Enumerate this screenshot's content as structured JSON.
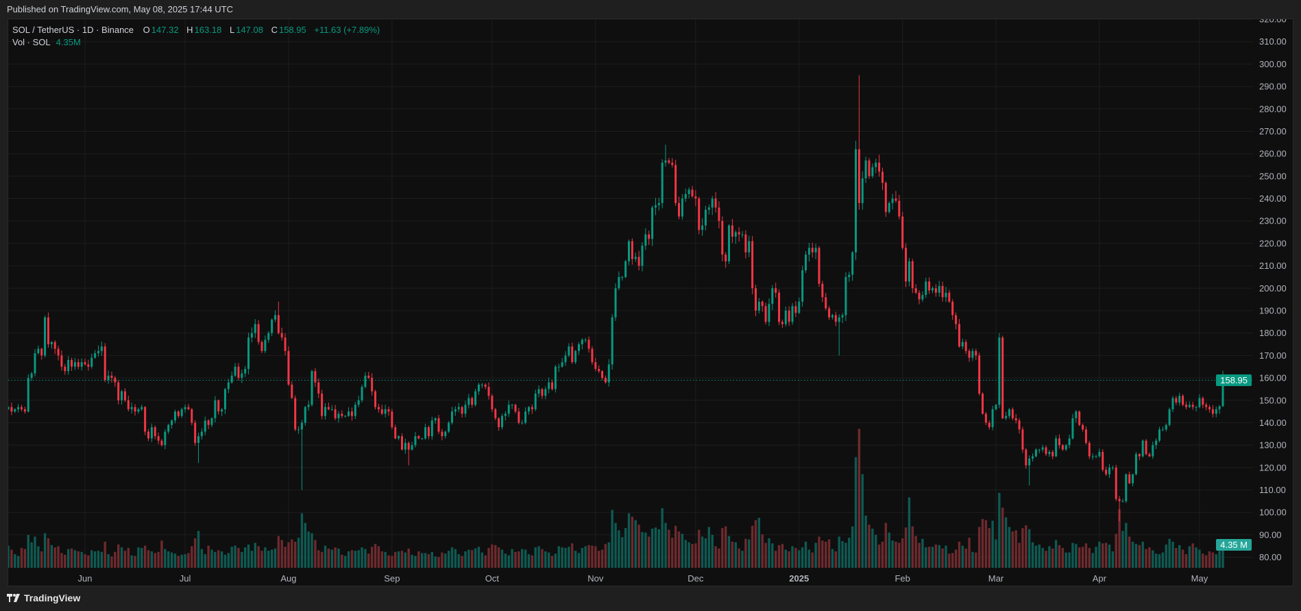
{
  "header": {
    "published": "Published on TradingView.com, May 08, 2025 17:44 UTC"
  },
  "legend": {
    "symbol": "SOL / TetherUS · 1D · Binance",
    "o_label": "O",
    "o": "147.32",
    "h_label": "H",
    "h": "163.18",
    "l_label": "L",
    "l": "147.08",
    "c_label": "C",
    "c": "158.95",
    "change": "+11.63 (+7.89%)",
    "vol_label": "Vol · SOL",
    "vol": "4.35M"
  },
  "badges": {
    "last_price": "158.95",
    "last_volume": "4.35 M"
  },
  "footer": {
    "brand": "TradingView",
    "logo_icon": "tradingview-logo-icon"
  },
  "colors": {
    "up": "#089981",
    "down": "#f23645",
    "vol_up": "#0e5a52",
    "vol_down": "#6e2a2e",
    "price_line": "#089981",
    "volume_badge": "#26a69a"
  },
  "chart_data": {
    "type": "candlestick",
    "x_range": [
      "2024-05-09",
      "2025-05-08"
    ],
    "ylim": [
      80,
      320
    ],
    "y_ticks": [
      80,
      90,
      100,
      110,
      120,
      130,
      140,
      150,
      160,
      170,
      180,
      190,
      200,
      210,
      220,
      230,
      240,
      250,
      260,
      270,
      280,
      290,
      300,
      310,
      320
    ],
    "x_ticks": [
      {
        "label": "Jun",
        "date": "2024-06-01"
      },
      {
        "label": "Jul",
        "date": "2024-07-01"
      },
      {
        "label": "Aug",
        "date": "2024-08-01"
      },
      {
        "label": "Sep",
        "date": "2024-09-01"
      },
      {
        "label": "Oct",
        "date": "2024-10-01"
      },
      {
        "label": "Nov",
        "date": "2024-11-01"
      },
      {
        "label": "Dec",
        "date": "2024-12-01"
      },
      {
        "label": "2025",
        "date": "2025-01-01",
        "bold": true
      },
      {
        "label": "Feb",
        "date": "2025-02-01"
      },
      {
        "label": "Mar",
        "date": "2025-03-01"
      },
      {
        "label": "Apr",
        "date": "2025-04-01"
      },
      {
        "label": "May",
        "date": "2025-05-01"
      }
    ],
    "grid": true,
    "last_price": 158.95,
    "volume_unit": "M",
    "months": [
      {
        "month": "2024-05",
        "open": 146,
        "close": [
          147,
          145,
          146,
          147,
          146,
          145,
          160,
          162,
          171,
          173,
          170,
          187,
          175,
          176,
          173,
          170,
          165,
          163,
          168,
          165,
          167,
          165,
          167
        ],
        "volume": [
          3.9,
          3.2,
          2.4,
          2.1,
          3.5,
          3.3,
          5.8,
          4.5,
          5.5,
          3.8,
          2.9,
          6.1,
          5.2,
          4.0,
          3.6,
          3.8,
          2.6,
          2.3,
          3.3,
          3.4,
          3.1,
          2.9,
          2.8
        ]
      },
      {
        "month": "2024-06",
        "close": [
          166,
          165,
          169,
          171,
          172,
          174,
          159,
          161,
          160,
          158,
          150,
          154,
          150,
          146,
          147,
          145,
          146,
          147,
          136,
          133,
          138,
          134,
          132,
          130,
          136,
          139,
          141,
          145,
          143,
          146
        ],
        "volume": [
          2.4,
          2.2,
          3.1,
          2.9,
          3.0,
          2.8,
          4.6,
          2.4,
          2.0,
          2.8,
          4.1,
          3.6,
          3.0,
          3.5,
          2.2,
          2.1,
          3.6,
          3.5,
          3.9,
          3.1,
          2.9,
          2.6,
          2.8,
          4.8,
          3.3,
          2.9,
          2.7,
          2.5,
          2.1,
          2.3
        ]
      },
      {
        "month": "2024-07",
        "close": [
          147,
          146,
          140,
          131,
          134,
          136,
          141,
          139,
          142,
          150,
          145,
          146,
          155,
          158,
          161,
          165,
          160,
          162,
          164,
          178,
          180,
          184,
          176,
          172,
          177,
          180,
          186,
          188,
          180,
          178,
          172
        ],
        "volume": [
          2.4,
          2.6,
          3.8,
          5.2,
          6.5,
          3.3,
          2.4,
          3.9,
          3.2,
          2.8,
          3.1,
          2.9,
          2.3,
          2.6,
          3.7,
          3.9,
          3.5,
          2.8,
          3.6,
          4.1,
          3.0,
          4.4,
          3.8,
          3.0,
          3.6,
          3.0,
          3.2,
          3.4,
          5.6,
          4.9,
          3.7
        ]
      },
      {
        "month": "2024-08",
        "close": [
          157,
          151,
          137,
          137,
          140,
          147,
          148,
          163,
          158,
          153,
          143,
          147,
          146,
          146,
          142,
          144,
          143,
          143,
          145,
          143,
          148,
          150,
          156,
          161,
          160,
          154,
          147,
          146,
          144,
          146,
          145
        ],
        "volume": [
          4.5,
          5.0,
          4.6,
          5.3,
          9.6,
          7.9,
          6.4,
          6.1,
          4.9,
          3.1,
          2.8,
          3.9,
          3.4,
          3.2,
          3.6,
          3.4,
          2.3,
          2.1,
          2.9,
          3.1,
          3.0,
          3.1,
          3.6,
          3.3,
          2.5,
          3.7,
          4.2,
          3.8,
          2.9,
          2.8,
          2.2
        ]
      },
      {
        "month": "2024-09",
        "close": [
          138,
          133,
          134,
          128,
          131,
          128,
          130,
          134,
          133,
          133,
          138,
          134,
          141,
          142,
          136,
          134,
          136,
          140,
          145,
          146,
          147,
          144,
          148,
          151,
          148,
          154,
          157,
          157,
          156,
          152
        ],
        "volume": [
          2.1,
          2.8,
          2.9,
          3.0,
          2.7,
          3.4,
          2.3,
          2.1,
          2.9,
          2.6,
          2.6,
          2.4,
          2.8,
          2.0,
          1.9,
          2.7,
          2.5,
          3.0,
          3.6,
          3.3,
          2.4,
          2.1,
          2.9,
          3.2,
          3.1,
          3.4,
          3.7,
          2.7,
          2.2,
          3.5
        ]
      },
      {
        "month": "2024-10",
        "close": [
          146,
          142,
          138,
          143,
          144,
          148,
          148,
          145,
          140,
          140,
          145,
          147,
          146,
          153,
          155,
          152,
          155,
          158,
          155,
          165,
          165,
          167,
          170,
          174,
          167,
          172,
          175,
          177,
          177,
          173,
          167
        ],
        "volume": [
          4.1,
          4.0,
          3.6,
          3.2,
          2.5,
          2.2,
          3.3,
          2.8,
          2.9,
          3.3,
          3.2,
          2.4,
          2.2,
          3.6,
          3.8,
          3.3,
          2.9,
          2.7,
          2.1,
          2.5,
          3.8,
          3.6,
          3.5,
          3.7,
          4.3,
          3.0,
          2.6,
          3.5,
          3.8,
          4.0,
          3.9
        ]
      },
      {
        "month": "2024-11",
        "close": [
          164,
          163,
          160,
          158,
          166,
          187,
          200,
          205,
          205,
          212,
          221,
          213,
          214,
          210,
          219,
          224,
          222,
          236,
          237,
          238,
          256,
          257,
          256,
          255,
          238,
          232,
          240,
          242,
          244,
          241
        ],
        "volume": [
          3.8,
          3.0,
          3.2,
          4.2,
          4.5,
          10.2,
          7.9,
          6.6,
          5.4,
          7.0,
          9.6,
          9.0,
          8.4,
          7.6,
          6.3,
          6.2,
          5.5,
          6.9,
          7.1,
          6.8,
          10.5,
          7.9,
          6.7,
          5.3,
          7.4,
          6.4,
          6.0,
          4.9,
          4.5,
          4.2
        ]
      },
      {
        "month": "2024-12",
        "close": [
          240,
          226,
          228,
          235,
          236,
          240,
          236,
          230,
          215,
          212,
          228,
          223,
          225,
          224,
          224,
          216,
          221,
          200,
          190,
          194,
          192,
          185,
          193,
          200,
          198,
          185,
          184,
          190,
          185,
          192,
          189
        ],
        "volume": [
          4.3,
          6.7,
          5.5,
          5.2,
          7.2,
          5.8,
          3.8,
          3.4,
          7.0,
          7.3,
          5.6,
          4.6,
          4.5,
          3.4,
          3.0,
          5.1,
          5.0,
          7.4,
          8.4,
          8.8,
          5.9,
          4.4,
          5.2,
          4.3,
          3.0,
          4.0,
          4.2,
          3.2,
          2.9,
          3.8,
          3.5
        ]
      },
      {
        "month": "2025-01",
        "close": [
          194,
          208,
          215,
          218,
          216,
          218,
          202,
          196,
          191,
          187,
          188,
          185,
          187,
          188,
          205,
          206,
          216,
          262,
          238,
          249,
          257,
          250,
          254,
          256,
          252,
          247,
          234,
          238,
          240,
          239,
          232
        ],
        "volume": [
          3.1,
          3.6,
          4.6,
          3.2,
          2.7,
          4.4,
          5.5,
          4.8,
          4.6,
          5.0,
          3.3,
          2.9,
          5.5,
          4.7,
          4.4,
          5.3,
          7.3,
          19.5,
          24.5,
          16.5,
          9.2,
          7.6,
          6.9,
          5.8,
          4.1,
          4.6,
          7.9,
          6.2,
          4.8,
          4.6,
          4.4
        ]
      },
      {
        "month": "2025-02",
        "close": [
          218,
          203,
          212,
          200,
          198,
          195,
          197,
          203,
          199,
          200,
          198,
          201,
          196,
          198,
          194,
          188,
          184,
          174,
          176,
          172,
          169,
          172,
          170,
          153,
          144,
          140,
          138,
          146
        ],
        "volume": [
          5.2,
          7.1,
          12.4,
          7.3,
          5.6,
          4.4,
          5.1,
          3.6,
          3.7,
          3.7,
          4.1,
          4.0,
          3.4,
          3.9,
          2.5,
          2.6,
          3.2,
          4.6,
          3.9,
          3.4,
          5.3,
          2.8,
          2.7,
          7.2,
          8.6,
          8.4,
          7.0,
          8.3
        ]
      },
      {
        "month": "2025-03",
        "close": [
          148,
          178,
          142,
          143,
          146,
          142,
          141,
          137,
          128,
          121,
          124,
          125,
          128,
          128,
          129,
          126,
          127,
          125,
          133,
          130,
          128,
          130,
          133,
          142,
          145,
          139,
          137,
          131,
          125,
          125,
          125
        ],
        "volume": [
          5.0,
          13.2,
          10.6,
          8.9,
          7.2,
          6.4,
          6.6,
          4.4,
          7.0,
          7.5,
          6.8,
          4.5,
          3.9,
          4.1,
          3.5,
          3.0,
          3.8,
          3.4,
          4.9,
          4.0,
          3.5,
          2.7,
          2.7,
          4.4,
          4.2,
          3.6,
          3.7,
          4.3,
          3.5,
          2.6,
          3.7
        ]
      },
      {
        "month": "2025-04",
        "close": [
          127,
          119,
          117,
          120,
          120,
          106,
          105,
          105,
          117,
          113,
          117,
          126,
          125,
          132,
          126,
          125,
          130,
          132,
          137,
          137,
          139,
          146,
          151,
          149,
          152,
          148,
          147,
          148,
          147,
          147
        ],
        "volume": [
          4.6,
          4.3,
          4.4,
          4.1,
          2.9,
          6.0,
          10.3,
          6.5,
          7.9,
          5.5,
          4.6,
          4.2,
          4.0,
          4.6,
          3.3,
          3.6,
          3.1,
          2.5,
          2.4,
          2.7,
          4.1,
          5.1,
          4.6,
          3.5,
          4.0,
          3.2,
          2.4,
          3.8,
          4.3,
          3.6
        ]
      },
      {
        "month": "2025-05",
        "close": [
          151,
          148,
          147,
          146,
          144,
          146,
          147.32,
          158.95
        ],
        "volume": [
          3.2,
          2.5,
          2.2,
          2.9,
          2.7,
          2.4,
          3.0,
          4.35
        ]
      }
    ],
    "extremes": [
      {
        "date": "2024-07-05",
        "low": 122
      },
      {
        "date": "2024-07-29",
        "high": 194
      },
      {
        "date": "2024-08-05",
        "low": 110
      },
      {
        "date": "2024-09-06",
        "low": 121
      },
      {
        "date": "2024-11-22",
        "high": 264
      },
      {
        "date": "2025-01-13",
        "low": 170
      },
      {
        "date": "2025-01-19",
        "high": 295
      },
      {
        "date": "2025-03-02",
        "high": 180
      },
      {
        "date": "2025-03-11",
        "low": 112
      },
      {
        "date": "2025-04-07",
        "low": 96
      },
      {
        "date": "2025-05-08",
        "high": 163.18,
        "low": 147.08
      }
    ]
  }
}
